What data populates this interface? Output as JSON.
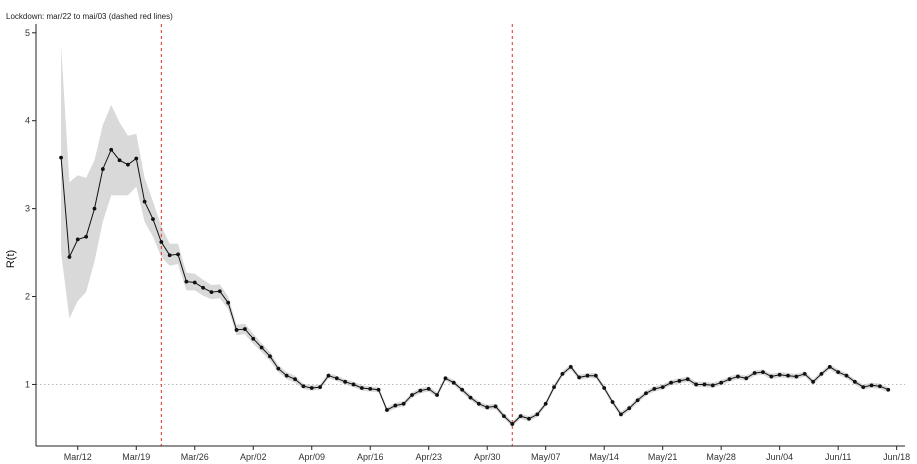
{
  "chart_data": {
    "type": "line",
    "title": "",
    "subtitle": "Lockdown: mar/22 to mai/03 (dashed red lines)",
    "xlabel": "",
    "ylabel": "R(t)",
    "ylim": [
      0.3,
      5.1
    ],
    "xlim": [
      "2020-03-07",
      "2020-06-19"
    ],
    "y_ticks": [
      1,
      2,
      3,
      4,
      5
    ],
    "x_ticks": [
      {
        "date": "2020-03-12",
        "label": "Mar/12"
      },
      {
        "date": "2020-03-19",
        "label": "Mar/19"
      },
      {
        "date": "2020-03-26",
        "label": "Mar/26"
      },
      {
        "date": "2020-04-02",
        "label": "Apr/02"
      },
      {
        "date": "2020-04-09",
        "label": "Apr/09"
      },
      {
        "date": "2020-04-16",
        "label": "Apr/16"
      },
      {
        "date": "2020-04-23",
        "label": "Apr/23"
      },
      {
        "date": "2020-04-30",
        "label": "Apr/30"
      },
      {
        "date": "2020-05-07",
        "label": "May/07"
      },
      {
        "date": "2020-05-14",
        "label": "May/14"
      },
      {
        "date": "2020-05-21",
        "label": "May/21"
      },
      {
        "date": "2020-05-28",
        "label": "May/28"
      },
      {
        "date": "2020-06-04",
        "label": "Jun/04"
      },
      {
        "date": "2020-06-11",
        "label": "Jun/11"
      },
      {
        "date": "2020-06-18",
        "label": "Jun/18"
      }
    ],
    "reference_line": {
      "y": 1,
      "style": "dotted",
      "color": "#bbbbbb"
    },
    "vertical_lines": [
      {
        "date": "2020-03-22",
        "style": "dashed",
        "color": "#e0302a"
      },
      {
        "date": "2020-05-03",
        "style": "dashed",
        "color": "#e0302a"
      }
    ],
    "line_color": "#111111",
    "band_color": "#d9d9d9",
    "grid": false,
    "series": [
      {
        "points": [
          {
            "x": "2020-03-10",
            "y": 3.58,
            "lo": 2.5,
            "hi": 4.85
          },
          {
            "x": "2020-03-11",
            "y": 2.45,
            "lo": 1.75,
            "hi": 3.3
          },
          {
            "x": "2020-03-12",
            "y": 2.65,
            "lo": 1.95,
            "hi": 3.38
          },
          {
            "x": "2020-03-13",
            "y": 2.68,
            "lo": 2.05,
            "hi": 3.35
          },
          {
            "x": "2020-03-14",
            "y": 3.0,
            "lo": 2.4,
            "hi": 3.55
          },
          {
            "x": "2020-03-15",
            "y": 3.45,
            "lo": 2.85,
            "hi": 3.95
          },
          {
            "x": "2020-03-16",
            "y": 3.67,
            "lo": 3.15,
            "hi": 4.18
          },
          {
            "x": "2020-03-17",
            "y": 3.55,
            "lo": 3.15,
            "hi": 3.98
          },
          {
            "x": "2020-03-18",
            "y": 3.5,
            "lo": 3.15,
            "hi": 3.83
          },
          {
            "x": "2020-03-19",
            "y": 3.57,
            "lo": 3.25,
            "hi": 3.85
          },
          {
            "x": "2020-03-20",
            "y": 3.08,
            "lo": 2.85,
            "hi": 3.35
          },
          {
            "x": "2020-03-21",
            "y": 2.88,
            "lo": 2.68,
            "hi": 3.08
          },
          {
            "x": "2020-03-22",
            "y": 2.62,
            "lo": 2.45,
            "hi": 2.8
          },
          {
            "x": "2020-03-23",
            "y": 2.47,
            "lo": 2.35,
            "hi": 2.6
          },
          {
            "x": "2020-03-24",
            "y": 2.48,
            "lo": 2.37,
            "hi": 2.6
          },
          {
            "x": "2020-03-25",
            "y": 2.17,
            "lo": 2.07,
            "hi": 2.27
          },
          {
            "x": "2020-03-26",
            "y": 2.16,
            "lo": 2.07,
            "hi": 2.26
          },
          {
            "x": "2020-03-27",
            "y": 2.1,
            "lo": 2.01,
            "hi": 2.19
          },
          {
            "x": "2020-03-28",
            "y": 2.05,
            "lo": 1.97,
            "hi": 2.13
          },
          {
            "x": "2020-03-29",
            "y": 2.06,
            "lo": 1.98,
            "hi": 2.14
          },
          {
            "x": "2020-03-30",
            "y": 1.93,
            "lo": 1.86,
            "hi": 2.0
          },
          {
            "x": "2020-03-31",
            "y": 1.62,
            "lo": 1.56,
            "hi": 1.68
          },
          {
            "x": "2020-04-01",
            "y": 1.63,
            "lo": 1.57,
            "hi": 1.69
          },
          {
            "x": "2020-04-02",
            "y": 1.52,
            "lo": 1.46,
            "hi": 1.58
          },
          {
            "x": "2020-04-03",
            "y": 1.42,
            "lo": 1.37,
            "hi": 1.47
          },
          {
            "x": "2020-04-04",
            "y": 1.32,
            "lo": 1.27,
            "hi": 1.37
          },
          {
            "x": "2020-04-05",
            "y": 1.18,
            "lo": 1.14,
            "hi": 1.22
          },
          {
            "x": "2020-04-06",
            "y": 1.1,
            "lo": 1.06,
            "hi": 1.14
          },
          {
            "x": "2020-04-07",
            "y": 1.06,
            "lo": 1.02,
            "hi": 1.1
          },
          {
            "x": "2020-04-08",
            "y": 0.98,
            "lo": 0.95,
            "hi": 1.01
          },
          {
            "x": "2020-04-09",
            "y": 0.96,
            "lo": 0.93,
            "hi": 0.99
          },
          {
            "x": "2020-04-10",
            "y": 0.97,
            "lo": 0.94,
            "hi": 1.0
          },
          {
            "x": "2020-04-11",
            "y": 1.1,
            "lo": 1.07,
            "hi": 1.13
          },
          {
            "x": "2020-04-12",
            "y": 1.07,
            "lo": 1.04,
            "hi": 1.1
          },
          {
            "x": "2020-04-13",
            "y": 1.03,
            "lo": 1.0,
            "hi": 1.06
          },
          {
            "x": "2020-04-14",
            "y": 1.0,
            "lo": 0.97,
            "hi": 1.03
          },
          {
            "x": "2020-04-15",
            "y": 0.96,
            "lo": 0.93,
            "hi": 0.99
          },
          {
            "x": "2020-04-16",
            "y": 0.95,
            "lo": 0.92,
            "hi": 0.98
          },
          {
            "x": "2020-04-17",
            "y": 0.94,
            "lo": 0.91,
            "hi": 0.97
          },
          {
            "x": "2020-04-18",
            "y": 0.71,
            "lo": 0.68,
            "hi": 0.74
          },
          {
            "x": "2020-04-19",
            "y": 0.76,
            "lo": 0.73,
            "hi": 0.79
          },
          {
            "x": "2020-04-20",
            "y": 0.78,
            "lo": 0.75,
            "hi": 0.81
          },
          {
            "x": "2020-04-21",
            "y": 0.88,
            "lo": 0.85,
            "hi": 0.91
          },
          {
            "x": "2020-04-22",
            "y": 0.93,
            "lo": 0.9,
            "hi": 0.96
          },
          {
            "x": "2020-04-23",
            "y": 0.95,
            "lo": 0.92,
            "hi": 0.98
          },
          {
            "x": "2020-04-24",
            "y": 0.88,
            "lo": 0.85,
            "hi": 0.91
          },
          {
            "x": "2020-04-25",
            "y": 1.07,
            "lo": 1.04,
            "hi": 1.1
          },
          {
            "x": "2020-04-26",
            "y": 1.02,
            "lo": 0.99,
            "hi": 1.05
          },
          {
            "x": "2020-04-27",
            "y": 0.94,
            "lo": 0.91,
            "hi": 0.97
          },
          {
            "x": "2020-04-28",
            "y": 0.85,
            "lo": 0.82,
            "hi": 0.88
          },
          {
            "x": "2020-04-29",
            "y": 0.78,
            "lo": 0.75,
            "hi": 0.81
          },
          {
            "x": "2020-04-30",
            "y": 0.74,
            "lo": 0.71,
            "hi": 0.77
          },
          {
            "x": "2020-05-01",
            "y": 0.75,
            "lo": 0.72,
            "hi": 0.78
          },
          {
            "x": "2020-05-02",
            "y": 0.64,
            "lo": 0.61,
            "hi": 0.67
          },
          {
            "x": "2020-05-03",
            "y": 0.55,
            "lo": 0.52,
            "hi": 0.58
          },
          {
            "x": "2020-05-04",
            "y": 0.64,
            "lo": 0.61,
            "hi": 0.67
          },
          {
            "x": "2020-05-05",
            "y": 0.61,
            "lo": 0.58,
            "hi": 0.64
          },
          {
            "x": "2020-05-06",
            "y": 0.66,
            "lo": 0.63,
            "hi": 0.69
          },
          {
            "x": "2020-05-07",
            "y": 0.78,
            "lo": 0.75,
            "hi": 0.81
          },
          {
            "x": "2020-05-08",
            "y": 0.97,
            "lo": 0.94,
            "hi": 1.0
          },
          {
            "x": "2020-05-09",
            "y": 1.12,
            "lo": 1.09,
            "hi": 1.15
          },
          {
            "x": "2020-05-10",
            "y": 1.2,
            "lo": 1.17,
            "hi": 1.23
          },
          {
            "x": "2020-05-11",
            "y": 1.08,
            "lo": 1.05,
            "hi": 1.11
          },
          {
            "x": "2020-05-12",
            "y": 1.1,
            "lo": 1.07,
            "hi": 1.13
          },
          {
            "x": "2020-05-13",
            "y": 1.1,
            "lo": 1.07,
            "hi": 1.13
          },
          {
            "x": "2020-05-14",
            "y": 0.96,
            "lo": 0.93,
            "hi": 0.99
          },
          {
            "x": "2020-05-15",
            "y": 0.8,
            "lo": 0.77,
            "hi": 0.83
          },
          {
            "x": "2020-05-16",
            "y": 0.66,
            "lo": 0.63,
            "hi": 0.69
          },
          {
            "x": "2020-05-17",
            "y": 0.73,
            "lo": 0.7,
            "hi": 0.76
          },
          {
            "x": "2020-05-18",
            "y": 0.82,
            "lo": 0.79,
            "hi": 0.85
          },
          {
            "x": "2020-05-19",
            "y": 0.9,
            "lo": 0.87,
            "hi": 0.93
          },
          {
            "x": "2020-05-20",
            "y": 0.95,
            "lo": 0.92,
            "hi": 0.98
          },
          {
            "x": "2020-05-21",
            "y": 0.97,
            "lo": 0.94,
            "hi": 1.0
          },
          {
            "x": "2020-05-22",
            "y": 1.02,
            "lo": 0.99,
            "hi": 1.05
          },
          {
            "x": "2020-05-23",
            "y": 1.04,
            "lo": 1.01,
            "hi": 1.07
          },
          {
            "x": "2020-05-24",
            "y": 1.06,
            "lo": 1.03,
            "hi": 1.09
          },
          {
            "x": "2020-05-25",
            "y": 1.0,
            "lo": 0.97,
            "hi": 1.03
          },
          {
            "x": "2020-05-26",
            "y": 1.0,
            "lo": 0.97,
            "hi": 1.03
          },
          {
            "x": "2020-05-27",
            "y": 0.99,
            "lo": 0.96,
            "hi": 1.02
          },
          {
            "x": "2020-05-28",
            "y": 1.02,
            "lo": 0.99,
            "hi": 1.05
          },
          {
            "x": "2020-05-29",
            "y": 1.06,
            "lo": 1.03,
            "hi": 1.09
          },
          {
            "x": "2020-05-30",
            "y": 1.09,
            "lo": 1.06,
            "hi": 1.12
          },
          {
            "x": "2020-05-31",
            "y": 1.07,
            "lo": 1.04,
            "hi": 1.1
          },
          {
            "x": "2020-06-01",
            "y": 1.13,
            "lo": 1.1,
            "hi": 1.16
          },
          {
            "x": "2020-06-02",
            "y": 1.14,
            "lo": 1.11,
            "hi": 1.17
          },
          {
            "x": "2020-06-03",
            "y": 1.09,
            "lo": 1.06,
            "hi": 1.12
          },
          {
            "x": "2020-06-04",
            "y": 1.11,
            "lo": 1.08,
            "hi": 1.14
          },
          {
            "x": "2020-06-05",
            "y": 1.1,
            "lo": 1.07,
            "hi": 1.13
          },
          {
            "x": "2020-06-06",
            "y": 1.09,
            "lo": 1.06,
            "hi": 1.12
          },
          {
            "x": "2020-06-07",
            "y": 1.12,
            "lo": 1.09,
            "hi": 1.15
          },
          {
            "x": "2020-06-08",
            "y": 1.03,
            "lo": 1.0,
            "hi": 1.06
          },
          {
            "x": "2020-06-09",
            "y": 1.12,
            "lo": 1.09,
            "hi": 1.15
          },
          {
            "x": "2020-06-10",
            "y": 1.2,
            "lo": 1.17,
            "hi": 1.23
          },
          {
            "x": "2020-06-11",
            "y": 1.14,
            "lo": 1.11,
            "hi": 1.17
          },
          {
            "x": "2020-06-12",
            "y": 1.1,
            "lo": 1.07,
            "hi": 1.13
          },
          {
            "x": "2020-06-13",
            "y": 1.03,
            "lo": 1.0,
            "hi": 1.06
          },
          {
            "x": "2020-06-14",
            "y": 0.97,
            "lo": 0.94,
            "hi": 1.0
          },
          {
            "x": "2020-06-15",
            "y": 0.99,
            "lo": 0.96,
            "hi": 1.02
          },
          {
            "x": "2020-06-16",
            "y": 0.98,
            "lo": 0.95,
            "hi": 1.01
          },
          {
            "x": "2020-06-17",
            "y": 0.94,
            "lo": 0.91,
            "hi": 0.97
          }
        ]
      }
    ]
  }
}
